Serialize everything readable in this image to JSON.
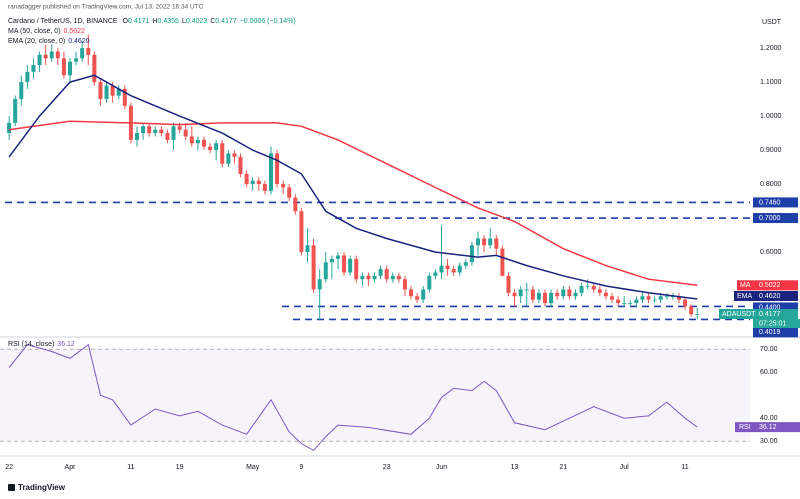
{
  "header": "ranadagger published on TradingView.com, Jul 13, 2022 16:34 UTC",
  "footer": "TradingView",
  "chart_data": {
    "type": "candlestick",
    "title": "Cardano / TetherUS, 1D, BINANCE",
    "symbol": "ADAUSDT",
    "currency": "USDT",
    "countdown": "07:25:01",
    "quote": [
      {
        "label": "O",
        "value": 0.4171
      },
      {
        "label": "H",
        "value": 0.4355
      },
      {
        "label": "L",
        "value": 0.4023
      },
      {
        "label": "C",
        "value": 0.4177
      }
    ],
    "change": "−0.0006 (−0.14%)",
    "last": 0.4177,
    "up_color": "#26a69a",
    "down_color": "#ef5350",
    "grid": false,
    "ylim": [
      0.356,
      1.312
    ],
    "yticks": [
      {
        "value": 1.2,
        "label": "1.2000"
      },
      {
        "value": 1.1,
        "label": "1.1000"
      },
      {
        "value": 1.0,
        "label": "1.0000"
      },
      {
        "value": 0.9,
        "label": "0.9000"
      },
      {
        "value": 0.8,
        "label": "0.8000"
      },
      {
        "value": 0.6,
        "label": "0.6000"
      }
    ],
    "xticks": [
      {
        "value": "Mar 22",
        "label": "22"
      },
      {
        "value": "Apr 1",
        "label": "Apr"
      },
      {
        "value": "Apr 11",
        "label": "11"
      },
      {
        "value": "Apr 19",
        "label": "19"
      },
      {
        "value": "May 1",
        "label": "May"
      },
      {
        "value": "May 9",
        "label": "9"
      },
      {
        "value": "May 23",
        "label": "23"
      },
      {
        "value": "Jun 1",
        "label": "Jun"
      },
      {
        "value": "Jun 13",
        "label": "13"
      },
      {
        "value": "Jun 21",
        "label": "21"
      },
      {
        "value": "Jul 1",
        "label": "Jul"
      },
      {
        "value": "Jul 11",
        "label": "11"
      }
    ],
    "levels": [
      {
        "value": 0.746,
        "label": "0.7460"
      },
      {
        "value": 0.7,
        "label": "0.7000"
      },
      {
        "value": 0.44,
        "label": "0.4400"
      },
      {
        "value": 0.4019,
        "label": "0.4019"
      }
    ],
    "level_color": "#1e3ea8",
    "x": [
      "Mar 22",
      "Mar 23",
      "Mar 24",
      "Mar 25",
      "Mar 26",
      "Mar 27",
      "Mar 28",
      "Mar 29",
      "Mar 30",
      "Mar 31",
      "Apr 1",
      "Apr 2",
      "Apr 3",
      "Apr 4",
      "Apr 5",
      "Apr 6",
      "Apr 7",
      "Apr 8",
      "Apr 9",
      "Apr 10",
      "Apr 11",
      "Apr 12",
      "Apr 13",
      "Apr 14",
      "Apr 15",
      "Apr 16",
      "Apr 17",
      "Apr 18",
      "Apr 19",
      "Apr 20",
      "Apr 21",
      "Apr 22",
      "Apr 23",
      "Apr 24",
      "Apr 25",
      "Apr 26",
      "Apr 27",
      "Apr 28",
      "Apr 29",
      "Apr 30",
      "May 1",
      "May 2",
      "May 3",
      "May 4",
      "May 5",
      "May 6",
      "May 7",
      "May 8",
      "May 9",
      "May 10",
      "May 11",
      "May 12",
      "May 13",
      "May 14",
      "May 15",
      "May 16",
      "May 17",
      "May 18",
      "May 19",
      "May 20",
      "May 21",
      "May 22",
      "May 23",
      "May 24",
      "May 25",
      "May 26",
      "May 27",
      "May 28",
      "May 29",
      "May 30",
      "May 31",
      "Jun 1",
      "Jun 2",
      "Jun 3",
      "Jun 4",
      "Jun 5",
      "Jun 6",
      "Jun 7",
      "Jun 8",
      "Jun 9",
      "Jun 10",
      "Jun 11",
      "Jun 12",
      "Jun 13",
      "Jun 14",
      "Jun 15",
      "Jun 16",
      "Jun 17",
      "Jun 18",
      "Jun 19",
      "Jun 20",
      "Jun 21",
      "Jun 22",
      "Jun 23",
      "Jun 24",
      "Jun 25",
      "Jun 26",
      "Jun 27",
      "Jun 28",
      "Jun 29",
      "Jun 30",
      "Jul 1",
      "Jul 2",
      "Jul 3",
      "Jul 4",
      "Jul 5",
      "Jul 6",
      "Jul 7",
      "Jul 8",
      "Jul 9",
      "Jul 10",
      "Jul 11",
      "Jul 12",
      "Jul 13"
    ],
    "ohlc": [
      [
        0.95,
        1.0,
        0.93,
        0.98
      ],
      [
        0.98,
        1.06,
        0.97,
        1.05
      ],
      [
        1.05,
        1.12,
        1.03,
        1.1
      ],
      [
        1.1,
        1.15,
        1.08,
        1.13
      ],
      [
        1.13,
        1.17,
        1.11,
        1.15
      ],
      [
        1.15,
        1.19,
        1.13,
        1.18
      ],
      [
        1.18,
        1.21,
        1.15,
        1.17
      ],
      [
        1.17,
        1.21,
        1.16,
        1.19
      ],
      [
        1.19,
        1.2,
        1.15,
        1.17
      ],
      [
        1.17,
        1.19,
        1.11,
        1.12
      ],
      [
        1.12,
        1.17,
        1.1,
        1.16
      ],
      [
        1.16,
        1.19,
        1.15,
        1.17
      ],
      [
        1.17,
        1.22,
        1.16,
        1.2
      ],
      [
        1.2,
        1.24,
        1.15,
        1.18
      ],
      [
        1.18,
        1.19,
        1.09,
        1.1
      ],
      [
        1.1,
        1.11,
        1.03,
        1.05
      ],
      [
        1.05,
        1.1,
        1.04,
        1.09
      ],
      [
        1.09,
        1.1,
        1.04,
        1.06
      ],
      [
        1.06,
        1.09,
        1.05,
        1.08
      ],
      [
        1.08,
        1.09,
        1.02,
        1.03
      ],
      [
        1.03,
        1.04,
        0.92,
        0.93
      ],
      [
        0.93,
        0.97,
        0.91,
        0.95
      ],
      [
        0.95,
        0.98,
        0.93,
        0.97
      ],
      [
        0.97,
        0.98,
        0.94,
        0.95
      ],
      [
        0.95,
        0.97,
        0.94,
        0.96
      ],
      [
        0.96,
        0.97,
        0.94,
        0.95
      ],
      [
        0.95,
        0.96,
        0.92,
        0.93
      ],
      [
        0.93,
        0.98,
        0.9,
        0.97
      ],
      [
        0.97,
        0.98,
        0.95,
        0.96
      ],
      [
        0.96,
        0.98,
        0.93,
        0.94
      ],
      [
        0.94,
        0.97,
        0.91,
        0.92
      ],
      [
        0.92,
        0.94,
        0.9,
        0.93
      ],
      [
        0.93,
        0.94,
        0.9,
        0.91
      ],
      [
        0.91,
        0.92,
        0.89,
        0.9
      ],
      [
        0.9,
        0.93,
        0.87,
        0.92
      ],
      [
        0.92,
        0.93,
        0.85,
        0.86
      ],
      [
        0.86,
        0.9,
        0.85,
        0.89
      ],
      [
        0.89,
        0.9,
        0.86,
        0.88
      ],
      [
        0.88,
        0.89,
        0.82,
        0.83
      ],
      [
        0.83,
        0.84,
        0.79,
        0.8
      ],
      [
        0.8,
        0.82,
        0.78,
        0.81
      ],
      [
        0.81,
        0.82,
        0.78,
        0.8
      ],
      [
        0.8,
        0.81,
        0.77,
        0.78
      ],
      [
        0.78,
        0.91,
        0.77,
        0.89
      ],
      [
        0.89,
        0.9,
        0.79,
        0.8
      ],
      [
        0.8,
        0.81,
        0.77,
        0.79
      ],
      [
        0.79,
        0.8,
        0.75,
        0.76
      ],
      [
        0.76,
        0.77,
        0.71,
        0.72
      ],
      [
        0.72,
        0.73,
        0.59,
        0.6
      ],
      [
        0.6,
        0.67,
        0.57,
        0.62
      ],
      [
        0.62,
        0.64,
        0.48,
        0.49
      ],
      [
        0.49,
        0.55,
        0.4,
        0.52
      ],
      [
        0.52,
        0.6,
        0.51,
        0.57
      ],
      [
        0.57,
        0.59,
        0.52,
        0.58
      ],
      [
        0.58,
        0.6,
        0.55,
        0.59
      ],
      [
        0.59,
        0.6,
        0.53,
        0.54
      ],
      [
        0.54,
        0.59,
        0.53,
        0.58
      ],
      [
        0.58,
        0.59,
        0.51,
        0.52
      ],
      [
        0.52,
        0.54,
        0.5,
        0.53
      ],
      [
        0.53,
        0.54,
        0.5,
        0.52
      ],
      [
        0.52,
        0.54,
        0.51,
        0.53
      ],
      [
        0.53,
        0.56,
        0.52,
        0.55
      ],
      [
        0.55,
        0.56,
        0.51,
        0.52
      ],
      [
        0.52,
        0.54,
        0.51,
        0.53
      ],
      [
        0.53,
        0.54,
        0.51,
        0.52
      ],
      [
        0.52,
        0.53,
        0.47,
        0.49
      ],
      [
        0.49,
        0.5,
        0.46,
        0.47
      ],
      [
        0.47,
        0.48,
        0.45,
        0.46
      ],
      [
        0.46,
        0.5,
        0.45,
        0.49
      ],
      [
        0.49,
        0.54,
        0.48,
        0.53
      ],
      [
        0.53,
        0.55,
        0.52,
        0.54
      ],
      [
        0.54,
        0.68,
        0.52,
        0.56
      ],
      [
        0.56,
        0.58,
        0.53,
        0.55
      ],
      [
        0.55,
        0.56,
        0.53,
        0.54
      ],
      [
        0.54,
        0.57,
        0.53,
        0.56
      ],
      [
        0.56,
        0.58,
        0.55,
        0.57
      ],
      [
        0.57,
        0.63,
        0.56,
        0.62
      ],
      [
        0.62,
        0.66,
        0.59,
        0.64
      ],
      [
        0.64,
        0.65,
        0.6,
        0.62
      ],
      [
        0.62,
        0.67,
        0.61,
        0.64
      ],
      [
        0.64,
        0.65,
        0.59,
        0.61
      ],
      [
        0.61,
        0.62,
        0.53,
        0.53
      ],
      [
        0.53,
        0.54,
        0.47,
        0.48
      ],
      [
        0.48,
        0.49,
        0.44,
        0.47
      ],
      [
        0.47,
        0.5,
        0.45,
        0.49
      ],
      [
        0.49,
        0.51,
        0.44,
        0.49
      ],
      [
        0.49,
        0.5,
        0.45,
        0.46
      ],
      [
        0.46,
        0.49,
        0.45,
        0.48
      ],
      [
        0.48,
        0.49,
        0.44,
        0.45
      ],
      [
        0.45,
        0.49,
        0.44,
        0.48
      ],
      [
        0.48,
        0.49,
        0.46,
        0.47
      ],
      [
        0.47,
        0.5,
        0.46,
        0.49
      ],
      [
        0.49,
        0.5,
        0.46,
        0.47
      ],
      [
        0.47,
        0.49,
        0.46,
        0.48
      ],
      [
        0.48,
        0.51,
        0.47,
        0.5
      ],
      [
        0.5,
        0.52,
        0.49,
        0.5
      ],
      [
        0.5,
        0.51,
        0.48,
        0.49
      ],
      [
        0.49,
        0.5,
        0.47,
        0.48
      ],
      [
        0.48,
        0.49,
        0.46,
        0.47
      ],
      [
        0.47,
        0.48,
        0.45,
        0.46
      ],
      [
        0.46,
        0.47,
        0.44,
        0.45
      ],
      [
        0.45,
        0.47,
        0.44,
        0.45
      ],
      [
        0.45,
        0.46,
        0.44,
        0.45
      ],
      [
        0.45,
        0.47,
        0.44,
        0.46
      ],
      [
        0.46,
        0.48,
        0.45,
        0.47
      ],
      [
        0.47,
        0.48,
        0.45,
        0.46
      ],
      [
        0.46,
        0.47,
        0.45,
        0.46
      ],
      [
        0.46,
        0.48,
        0.45,
        0.47
      ],
      [
        0.47,
        0.48,
        0.46,
        0.47
      ],
      [
        0.47,
        0.48,
        0.46,
        0.47
      ],
      [
        0.47,
        0.48,
        0.45,
        0.46
      ],
      [
        0.46,
        0.465,
        0.43,
        0.44
      ],
      [
        0.44,
        0.445,
        0.41,
        0.4171
      ],
      [
        0.4171,
        0.4355,
        0.4023,
        0.4177
      ]
    ],
    "ma": {
      "name": "MA (50, close, 0)",
      "short": "MA",
      "value": 0.5022,
      "color": "#f23645",
      "x": [
        "Mar 22",
        "Apr 1",
        "Apr 11",
        "Apr 19",
        "Apr 26",
        "May 5",
        "May 9",
        "May 15",
        "May 23",
        "May 31",
        "Jun 7",
        "Jun 13",
        "Jun 21",
        "Jun 28",
        "Jul 5",
        "Jul 13"
      ],
      "values": [
        0.96,
        0.985,
        0.98,
        0.975,
        0.98,
        0.98,
        0.97,
        0.93,
        0.86,
        0.79,
        0.73,
        0.69,
        0.61,
        0.56,
        0.52,
        0.5022
      ]
    },
    "ema": {
      "name": "EMA (20, close, 0)",
      "short": "EMA",
      "value": {
        "value": 0.462,
        "label": "0.4620"
      },
      "color": "#1a237e",
      "x": [
        "Mar 22",
        "Mar 27",
        "Apr 1",
        "Apr 5",
        "Apr 11",
        "Apr 19",
        "Apr 26",
        "May 1",
        "May 5",
        "May 9",
        "May 13",
        "May 18",
        "May 23",
        "May 31",
        "Jun 7",
        "Jun 10",
        "Jun 15",
        "Jun 21",
        "Jun 28",
        "Jul 5",
        "Jul 13"
      ],
      "values": [
        0.88,
        1.0,
        1.1,
        1.12,
        1.06,
        1.0,
        0.95,
        0.9,
        0.87,
        0.83,
        0.72,
        0.67,
        0.64,
        0.6,
        0.585,
        0.59,
        0.56,
        0.53,
        0.5,
        0.48,
        0.462
      ]
    },
    "rsi": {
      "name": "RSI (14, close)",
      "short": "RSI",
      "value": 36.12,
      "color": "#7e57c2",
      "ylim": [
        24,
        74
      ],
      "yticks": [
        {
          "value": 70,
          "label": "70.00"
        },
        {
          "value": 60,
          "label": "60.00"
        },
        {
          "value": 40,
          "label": "40.00"
        },
        {
          "value": 30,
          "label": "30.00"
        }
      ],
      "x": [
        "Mar 22",
        "Mar 25",
        "Mar 29",
        "Apr 1",
        "Apr 4",
        "Apr 6",
        "Apr 8",
        "Apr 11",
        "Apr 15",
        "Apr 19",
        "Apr 22",
        "Apr 26",
        "Apr 30",
        "May 4",
        "May 7",
        "May 9",
        "May 11",
        "May 13",
        "May 15",
        "May 20",
        "May 27",
        "May 30",
        "Jun 1",
        "Jun 3",
        "Jun 6",
        "Jun 8",
        "Jun 10",
        "Jun 13",
        "Jun 18",
        "Jun 22",
        "Jun 26",
        "Jul 1",
        "Jul 5",
        "Jul 8",
        "Jul 11",
        "Jul 13"
      ],
      "values": [
        62,
        72,
        69,
        66,
        72,
        50,
        48,
        37,
        44,
        41,
        43,
        37,
        33,
        48,
        34,
        29,
        26,
        32,
        37,
        36,
        33,
        40,
        49,
        53,
        52,
        56,
        52,
        38,
        35,
        40,
        45,
        40,
        41,
        47,
        40,
        36.12
      ]
    }
  }
}
